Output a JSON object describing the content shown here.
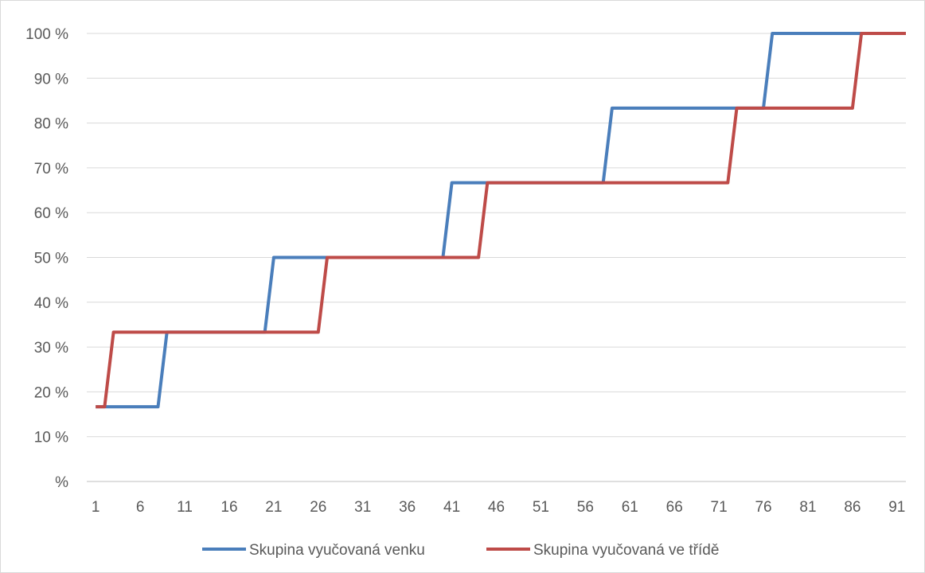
{
  "chart_data": {
    "type": "line",
    "title": "",
    "xlabel": "",
    "ylabel": "",
    "x_tick_labels": [
      "1",
      "6",
      "11",
      "16",
      "21",
      "26",
      "31",
      "36",
      "41",
      "46",
      "51",
      "56",
      "61",
      "66",
      "71",
      "76",
      "81",
      "86",
      "91"
    ],
    "y_tick_labels": [
      "%",
      "10 %",
      "20 %",
      "30 %",
      "40 %",
      "50 %",
      "60 %",
      "70 %",
      "80 %",
      "90 %",
      "100 %"
    ],
    "xlim": [
      0,
      92
    ],
    "ylim": [
      0,
      100
    ],
    "grid": true,
    "legend_position": "bottom",
    "series": [
      {
        "name": "Skupina vyučovaná venku",
        "color": "#4a7ebb",
        "points": [
          [
            1,
            16.67
          ],
          [
            8,
            16.67
          ],
          [
            9,
            33.33
          ],
          [
            20,
            33.33
          ],
          [
            21,
            50
          ],
          [
            40,
            50
          ],
          [
            41,
            66.67
          ],
          [
            58,
            66.67
          ],
          [
            59,
            83.33
          ],
          [
            76,
            83.33
          ],
          [
            77,
            100
          ],
          [
            92,
            100
          ]
        ]
      },
      {
        "name": "Skupina vyučovaná ve třídě",
        "color": "#be4b48",
        "points": [
          [
            1,
            16.67
          ],
          [
            2,
            16.67
          ],
          [
            3,
            33.33
          ],
          [
            26,
            33.33
          ],
          [
            27,
            50
          ],
          [
            44,
            50
          ],
          [
            45,
            66.67
          ],
          [
            72,
            66.67
          ],
          [
            73,
            83.33
          ],
          [
            86,
            83.33
          ],
          [
            87,
            100
          ],
          [
            92,
            100
          ]
        ]
      }
    ]
  }
}
